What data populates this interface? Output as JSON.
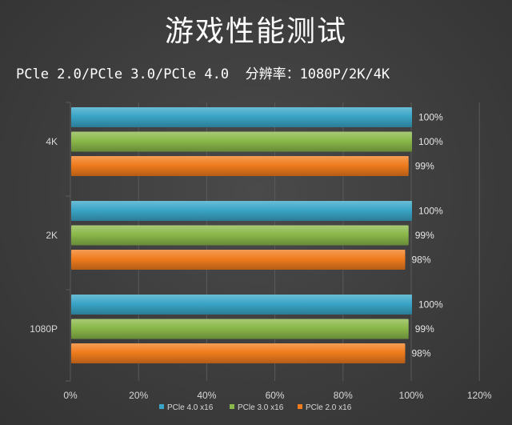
{
  "title": "游戏性能测试",
  "subtitle": "PCle 2.0/PCle 3.0/PCle 4.0  分辨率：1080P/2K/4K",
  "colors": {
    "PCle 4.0 x16": "#3aa5c7",
    "PCle 3.0 x16": "#8ab84a",
    "PCle 2.0 x16": "#f07c1d",
    "background": "#3f3f3f",
    "grid": "#5a5a5a",
    "text": "#ffffff"
  },
  "chart_data": {
    "type": "bar",
    "orientation": "horizontal",
    "title": "游戏性能测试",
    "subtitle": "PCle 2.0/PCle 3.0/PCle 4.0  分辨率：1080P/2K/4K",
    "categories": [
      "4K",
      "2K",
      "1080P"
    ],
    "series": [
      {
        "name": "PCle 4.0 x16",
        "values": [
          100,
          100,
          100
        ],
        "labels": [
          "100%",
          "100%",
          "100%"
        ]
      },
      {
        "name": "PCle 3.0 x16",
        "values": [
          100,
          99,
          99
        ],
        "labels": [
          "100%",
          "99%",
          "99%"
        ]
      },
      {
        "name": "PCle 2.0 x16",
        "values": [
          99,
          98,
          98
        ],
        "labels": [
          "99%",
          "98%",
          "98%"
        ]
      }
    ],
    "xlim": [
      0,
      120
    ],
    "xticks": [
      "0%",
      "20%",
      "40%",
      "60%",
      "80%",
      "100%",
      "120%"
    ],
    "grid": true,
    "legend_position": "bottom"
  }
}
